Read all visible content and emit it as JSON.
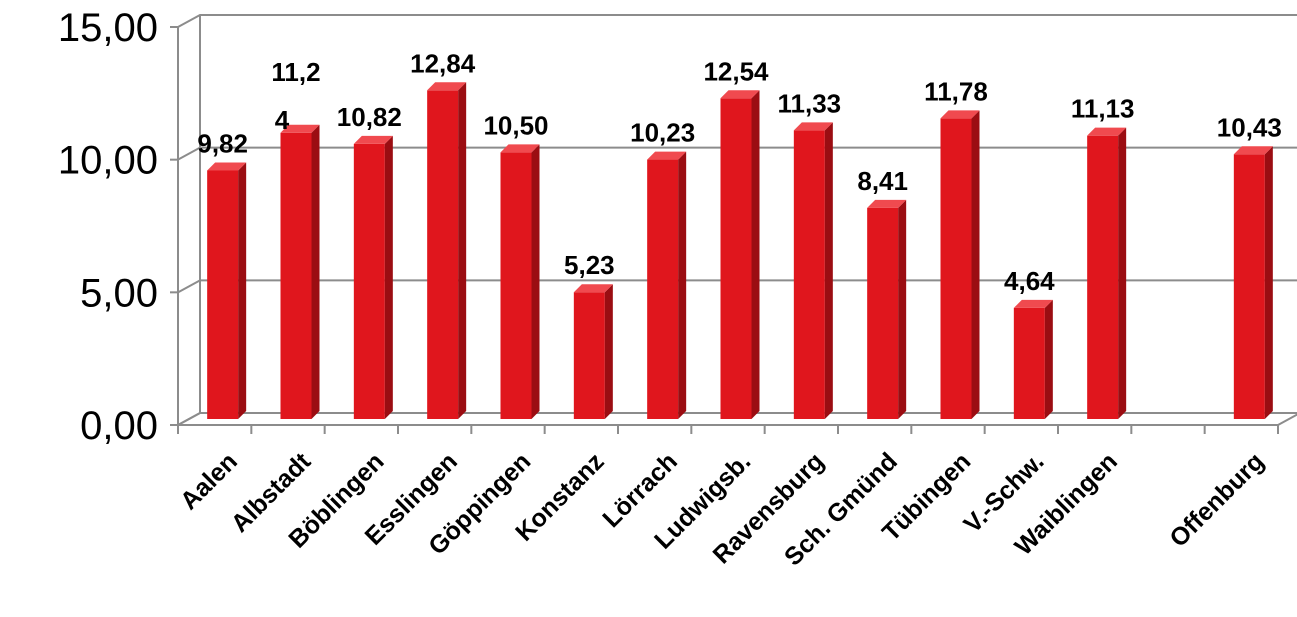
{
  "chart_data": {
    "type": "bar",
    "categories": [
      "Aalen",
      "Albstadt",
      "Böblingen",
      "Esslingen",
      "Göppingen",
      "Konstanz",
      "Lörrach",
      "Ludwigsb.",
      "Ravensburg",
      "Sch. Gmünd",
      "Tübingen",
      "V.-Schw.",
      "Waiblingen",
      "",
      "Offenburg"
    ],
    "values": [
      9.82,
      11.24,
      10.82,
      12.84,
      10.5,
      5.23,
      10.23,
      12.54,
      11.33,
      8.41,
      11.78,
      4.64,
      11.13,
      null,
      10.43
    ],
    "data_labels": [
      "9,82",
      "11,2\n4",
      "10,82",
      "12,84",
      "10,50",
      "5,23",
      "10,23",
      "12,54",
      "11,33",
      "8,41",
      "11,78",
      "4,64",
      "11,13",
      "",
      "10,43"
    ],
    "yticks": [
      "0,00",
      "5,00",
      "10,00",
      "15,00"
    ],
    "ylim": [
      0,
      15
    ],
    "grid": true,
    "title": "",
    "xlabel": "",
    "ylabel": "",
    "colors": {
      "bar_front": "#e0161d",
      "bar_side": "#9b0d12",
      "bar_top": "#f04a4f",
      "grid": "#8c8c8c"
    }
  }
}
